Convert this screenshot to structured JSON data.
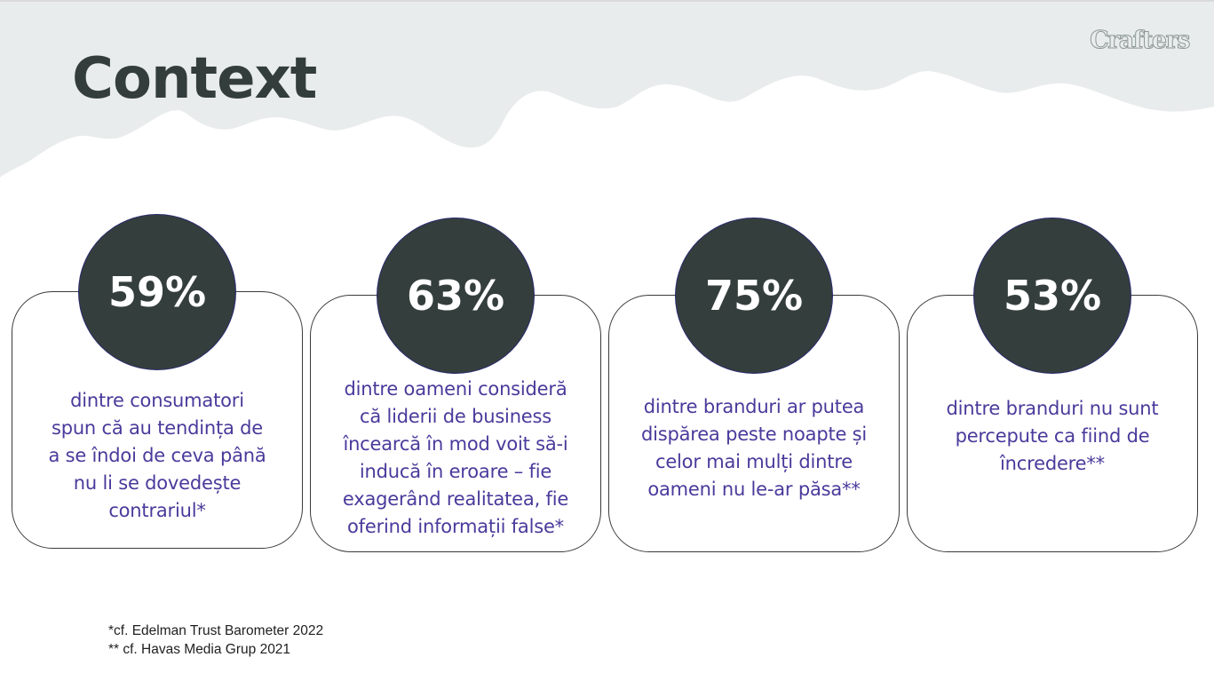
{
  "brand": {
    "logo_text": "Crafters",
    "background_color": "#e9ecec",
    "dark_color": "#343e3d",
    "accent_text_color": "#4a3a9b"
  },
  "header": {
    "title": "Context"
  },
  "stats": [
    {
      "value": "59%",
      "lines": [
        "dintre consumatori",
        "spun că au tendința de",
        "a se îndoi de ceva până",
        "nu li se dovedește",
        "contrariul*"
      ]
    },
    {
      "value": "63%",
      "lines": [
        "dintre oameni consideră",
        "că liderii de business",
        "încearcă în mod voit să-i",
        "inducă în eroare – fie",
        "exagerând realitatea, fie",
        "oferind informații false*"
      ]
    },
    {
      "value": "75%",
      "lines": [
        "dintre branduri ar putea",
        "dispărea peste noapte și",
        "celor mai mulți dintre",
        "oameni nu le-ar păsa**"
      ]
    },
    {
      "value": "53%",
      "lines": [
        "dintre branduri nu sunt",
        "percepute ca fiind de",
        "încredere**"
      ]
    }
  ],
  "footnotes": [
    "*cf. Edelman Trust Barometer 2022",
    "** cf. Havas Media Grup 2021"
  ]
}
